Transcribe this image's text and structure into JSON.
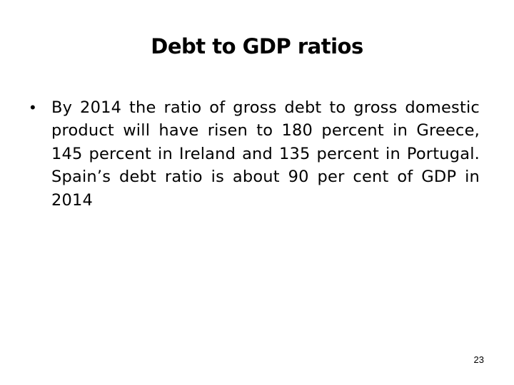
{
  "slide": {
    "title": "Debt to GDP ratios",
    "bullet_marker": "•",
    "bullet_text": "By 2014 the ratio of gross debt to gross domestic product will have risen to 180 percent in Greece, 145 percent in Ireland and 135 percent in Portugal. Spain’s debt ratio is about 90 per cent of GDP in 2014",
    "page_number": "23"
  }
}
